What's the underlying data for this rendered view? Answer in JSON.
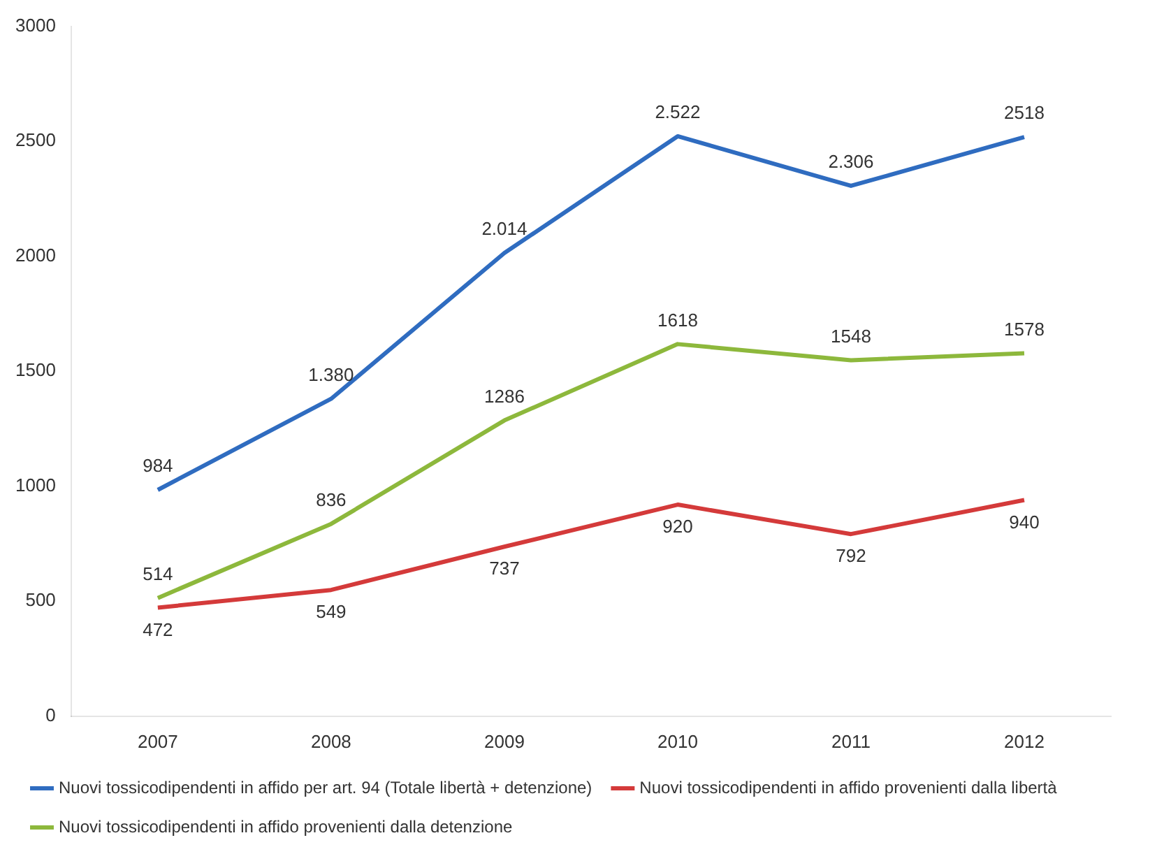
{
  "chart_data": {
    "type": "line",
    "categories": [
      "2007",
      "2008",
      "2009",
      "2010",
      "2011",
      "2012"
    ],
    "series": [
      {
        "name": "Nuovi tossicodipendenti in affido per art. 94 (Totale libertà + detenzione)",
        "color": "#2f6cc0",
        "values": [
          984,
          1380,
          2014,
          2522,
          2306,
          2518
        ],
        "value_labels": [
          "984",
          "1.380",
          "2.014",
          "2.522",
          "2.306",
          "2518"
        ]
      },
      {
        "name": "Nuovi tossicodipendenti in affido provenienti dalla libertà",
        "color": "#d43a3a",
        "values": [
          472,
          549,
          737,
          920,
          792,
          940
        ],
        "value_labels": [
          "472",
          "549",
          "737",
          "920",
          "792",
          "940"
        ]
      },
      {
        "name": "Nuovi tossicodipendenti in affido provenienti dalla detenzione",
        "color": "#8db83c",
        "values": [
          514,
          836,
          1286,
          1618,
          1548,
          1578
        ],
        "value_labels": [
          "514",
          "836",
          "1286",
          "1618",
          "1548",
          "1578"
        ]
      }
    ],
    "ylim": [
      0,
      3000
    ],
    "yticks": [
      0,
      500,
      1000,
      1500,
      2000,
      2500,
      3000
    ],
    "grid": false,
    "legend": "bottom",
    "marker": "none",
    "line_style": "solid"
  }
}
